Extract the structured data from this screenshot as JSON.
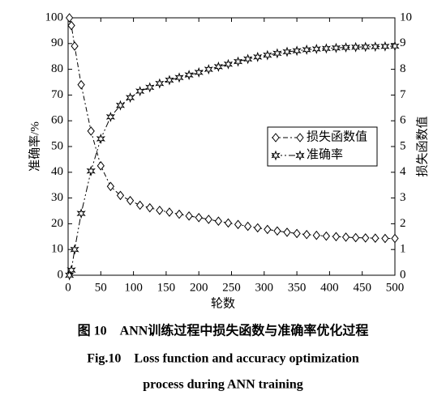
{
  "chart_data": {
    "type": "line",
    "x": [
      2,
      5,
      10,
      20,
      35,
      50,
      65,
      80,
      95,
      110,
      125,
      140,
      155,
      170,
      185,
      200,
      215,
      230,
      245,
      260,
      275,
      290,
      305,
      320,
      335,
      350,
      365,
      380,
      395,
      410,
      425,
      440,
      455,
      470,
      485,
      500
    ],
    "series": [
      {
        "name": "损失函数值",
        "color": "#000000",
        "marker": "diamond",
        "dash": "6 3 2 3",
        "axis": "y2",
        "values": [
          10,
          9.7,
          8.9,
          7.4,
          5.6,
          4.25,
          3.45,
          3.1,
          2.9,
          2.72,
          2.62,
          2.52,
          2.45,
          2.37,
          2.3,
          2.24,
          2.17,
          2.1,
          2.03,
          1.97,
          1.9,
          1.84,
          1.78,
          1.72,
          1.67,
          1.62,
          1.58,
          1.55,
          1.52,
          1.5,
          1.48,
          1.46,
          1.45,
          1.44,
          1.43,
          1.43
        ]
      },
      {
        "name": "准确率",
        "color": "#000000",
        "marker": "star",
        "dash": "8 3 2 3 2 3",
        "values": [
          0,
          2,
          10,
          24,
          40.5,
          53,
          61.5,
          66,
          69,
          71.5,
          73,
          74.5,
          75.8,
          76.8,
          77.8,
          78.8,
          80,
          81,
          82,
          83,
          84,
          84.8,
          85.5,
          86.2,
          86.8,
          87.2,
          87.6,
          87.9,
          88.1,
          88.3,
          88.5,
          88.6,
          88.7,
          88.8,
          88.9,
          89
        ]
      }
    ],
    "xlabel": "轮数",
    "ylabel": "准确率/%",
    "y2label": "损失函数值",
    "xlim": [
      0,
      500
    ],
    "xticks": [
      0,
      50,
      100,
      150,
      200,
      250,
      300,
      350,
      400,
      450,
      500
    ],
    "ylim": [
      0,
      100
    ],
    "yticks": [
      0,
      10,
      20,
      30,
      40,
      50,
      60,
      70,
      80,
      90,
      100
    ],
    "y2lim": [
      0,
      10
    ],
    "y2ticks": [
      0,
      1,
      2,
      3,
      4,
      5,
      6,
      7,
      8,
      9,
      10
    ],
    "legend": "right",
    "caption": [
      "图 10　ANN训练过程中损失函数与准确率优化过程",
      "Fig.10　Loss function and accuracy optimization",
      "process during ANN training"
    ]
  }
}
